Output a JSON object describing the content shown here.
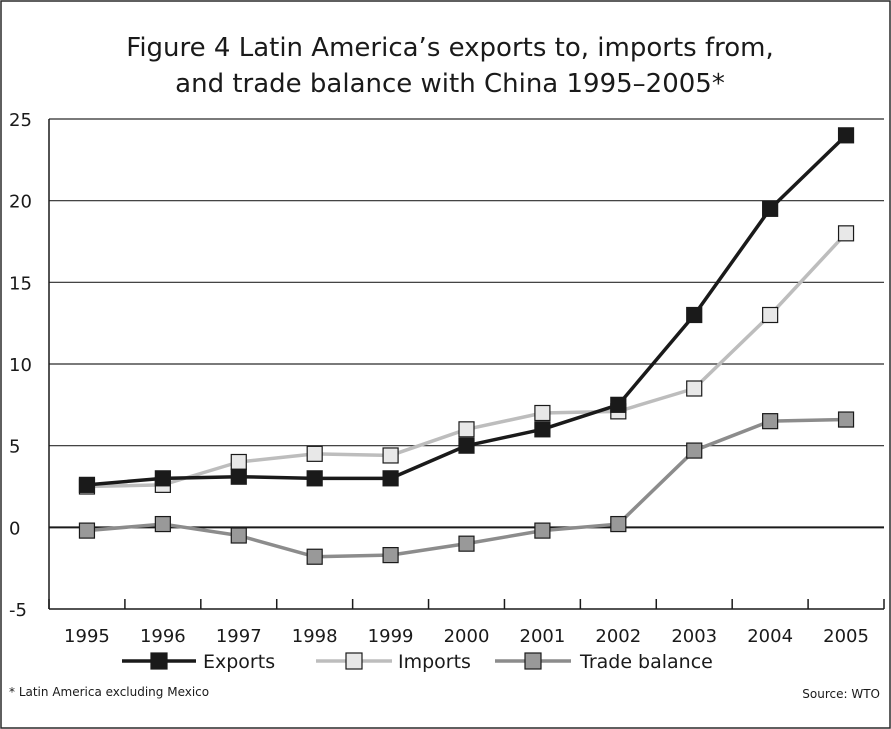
{
  "chart_data": {
    "type": "line",
    "title_lines": [
      "Figure 4 Latin America’s exports to, imports from,",
      "and trade balance with China 1995–2005*"
    ],
    "footnote": "* Latin America excluding Mexico",
    "source": "Source: WTO",
    "x": [
      "1995",
      "1996",
      "1997",
      "1998",
      "1999",
      "2000",
      "2001",
      "2002",
      "2003",
      "2004",
      "2005"
    ],
    "y_ticks": [
      25,
      20,
      15,
      10,
      5,
      0,
      -5
    ],
    "ylim": [
      -5,
      25
    ],
    "grid": true,
    "legend_placement": "bottom",
    "series": [
      {
        "name": "Exports",
        "line_color": "#1a1a1a",
        "marker_color": "#1a1a1a",
        "values": [
          2.6,
          3.0,
          3.1,
          3.0,
          3.0,
          5.0,
          6.0,
          7.5,
          13.0,
          19.5,
          24.0
        ]
      },
      {
        "name": "Imports",
        "line_color": "#bdbdbd",
        "marker_color": "#e8e8e8",
        "values": [
          2.5,
          2.6,
          4.0,
          4.5,
          4.4,
          6.0,
          7.0,
          7.1,
          8.5,
          13.0,
          18.0
        ]
      },
      {
        "name": "Trade balance",
        "line_color": "#8c8c8c",
        "marker_color": "#999999",
        "values": [
          -0.2,
          0.2,
          -0.5,
          -1.8,
          -1.7,
          -1.0,
          -0.2,
          0.2,
          4.7,
          6.5,
          6.6
        ]
      }
    ]
  }
}
